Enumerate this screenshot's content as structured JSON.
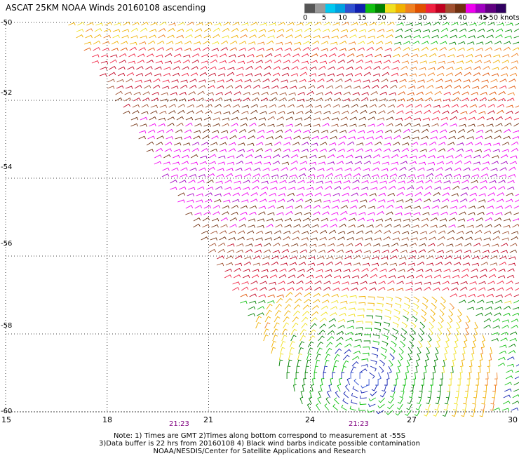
{
  "title": "ASCAT 25KM NOAA Winds 20160108 ascending",
  "colorbar": {
    "ticks": [
      "0",
      "5",
      "10",
      "15",
      "20",
      "25",
      "30",
      "35",
      "40",
      "45",
      ">50 knots"
    ],
    "colors": [
      "#555555",
      "#999999",
      "#00c8f0",
      "#00a0e0",
      "#3050d0",
      "#1020b0",
      "#10c010",
      "#008000",
      "#f0e020",
      "#f0b000",
      "#f08020",
      "#e05000",
      "#f02040",
      "#c00020",
      "#a05030",
      "#703010",
      "#f000f0",
      "#a000c0",
      "#600080",
      "#300060"
    ]
  },
  "axes": {
    "lat_ticks": [
      "-50",
      "-52",
      "-54",
      "-56",
      "-58",
      "-60"
    ],
    "lon_ticks": [
      "15",
      "18",
      "21",
      "24",
      "27",
      "30"
    ],
    "lat_range": [
      -60,
      -50
    ],
    "lon_range": [
      15,
      30
    ]
  },
  "pass_times": [
    "21:23",
    "21:23"
  ],
  "notes": [
    "Note: 1) Times are GMT 2)Times along bottom correspond to measurement at -55S",
    "3)Data buffer is 22 hrs from 20160108 4) Black wind barbs indicate possible contamination",
    "NOAA/NESDIS/Center for Satellite Applications and Research"
  ]
}
